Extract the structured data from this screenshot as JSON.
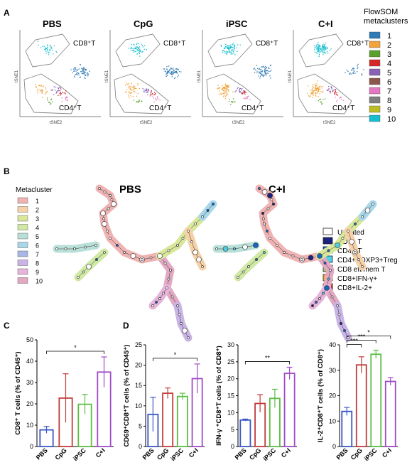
{
  "panels": {
    "A": "A",
    "B": "B",
    "C": "C",
    "D": "D"
  },
  "colors": {
    "mc": [
      "#2e7bb6",
      "#f2a33a",
      "#5aa02c",
      "#d62728",
      "#8a63b7",
      "#8c564b",
      "#e377c2",
      "#7f7f7f",
      "#bcbd22",
      "#17becf"
    ],
    "bar": {
      "PBS": "#3a57c4",
      "CpG": "#c23b3b",
      "iPSC": "#5bbf43",
      "C+I": "#a04ac8"
    },
    "mcPale": [
      "#f0b3b3",
      "#f6d1a8",
      "#d8e79a",
      "#cfe8a3",
      "#b9e0d8",
      "#a9d7ea",
      "#a9b7e7",
      "#c9b4e6",
      "#e7b4da",
      "#e3a9c3"
    ],
    "cells": [
      "#ffffff",
      "#1a237e",
      "#1565c0",
      "#4dd0e1",
      "#9ccc65",
      "#f9a825",
      "#c62828"
    ]
  },
  "panelA": {
    "titles": [
      "PBS",
      "CpG",
      "iPSC",
      "C+I"
    ],
    "cd8": "CD8⁺T",
    "cd4": "CD4⁺T",
    "xlabel": "tSNE2",
    "ylabel": "tSNE1",
    "legendTitle1": "FlowSOM",
    "legendTitle2": "metaclusters",
    "legend": [
      "1",
      "2",
      "3",
      "4",
      "5",
      "6",
      "7",
      "8",
      "9",
      "10"
    ]
  },
  "panelB": {
    "left": "PBS",
    "right": "C+I",
    "mcTitle": "Metacluster",
    "mc": [
      "1",
      "2",
      "3",
      "4",
      "5",
      "6",
      "7",
      "8",
      "9",
      "10"
    ],
    "cellTypes": [
      "Ungated",
      "CD8+ T",
      "CD4+ T",
      "CD4+FOXP3+Treg",
      "CD8 eff/mem T",
      "CD8+IFN-γ+",
      "CD8+IL-2+"
    ]
  },
  "categories": [
    "PBS",
    "CpG",
    "iPSC",
    "C+I"
  ],
  "chart_data": [
    {
      "type": "bar",
      "panel": "C",
      "categories": [
        "PBS",
        "CpG",
        "iPSC",
        "C+I"
      ],
      "values": [
        7.8,
        22.7,
        19.8,
        34.9
      ],
      "errors": [
        1.6,
        11.4,
        4.6,
        7.1
      ],
      "ylabel": "CD8⁺ T cells  (% of CD45⁺)",
      "ylim": [
        0,
        50
      ],
      "yticks": [
        0,
        10,
        20,
        30,
        40,
        50
      ],
      "significance": [
        {
          "from": 0,
          "to": 3,
          "label": "*"
        }
      ]
    },
    {
      "type": "bar",
      "panel": "D1",
      "categories": [
        "PBS",
        "CpG",
        "iPSC",
        "C+I"
      ],
      "values": [
        7.9,
        13.1,
        12.3,
        16.7
      ],
      "errors": [
        4.2,
        1.3,
        0.8,
        3.6
      ],
      "ylabel": "CD69⁺CD8⁺T cells  (% of CD45⁺)",
      "ylim": [
        0,
        25
      ],
      "yticks": [
        0,
        5,
        10,
        15,
        20,
        25
      ],
      "significance": [
        {
          "from": 0,
          "to": 3,
          "label": "*"
        }
      ]
    },
    {
      "type": "bar",
      "panel": "D2",
      "categories": [
        "PBS",
        "CpG",
        "iPSC",
        "C+I"
      ],
      "values": [
        7.8,
        12.7,
        14.2,
        21.6
      ],
      "errors": [
        0.3,
        2.6,
        2.7,
        1.8
      ],
      "ylabel": "IFN-γ ⁺CD8⁺T cells  (% of CD8⁺)",
      "ylim": [
        0,
        30
      ],
      "yticks": [
        0,
        5,
        10,
        15,
        20,
        25,
        30
      ],
      "significance": [
        {
          "from": 0,
          "to": 3,
          "label": "**"
        }
      ]
    },
    {
      "type": "bar",
      "panel": "D3",
      "categories": [
        "PBS",
        "CpG",
        "iPSC",
        "C+I"
      ],
      "values": [
        13.8,
        32.1,
        36.3,
        25.6
      ],
      "errors": [
        1.6,
        3.2,
        1.6,
        1.5
      ],
      "ylabel": "IL-2⁺CD8⁺T cells  (% of CD8⁺)",
      "ylim": [
        0,
        40
      ],
      "yticks": [
        0,
        10,
        20,
        30,
        40
      ],
      "significance": [
        {
          "from": 0,
          "to": 1,
          "label": "***"
        },
        {
          "from": 0,
          "to": 2,
          "label": "***"
        },
        {
          "from": 0,
          "to": 3,
          "label": "*"
        }
      ]
    }
  ]
}
